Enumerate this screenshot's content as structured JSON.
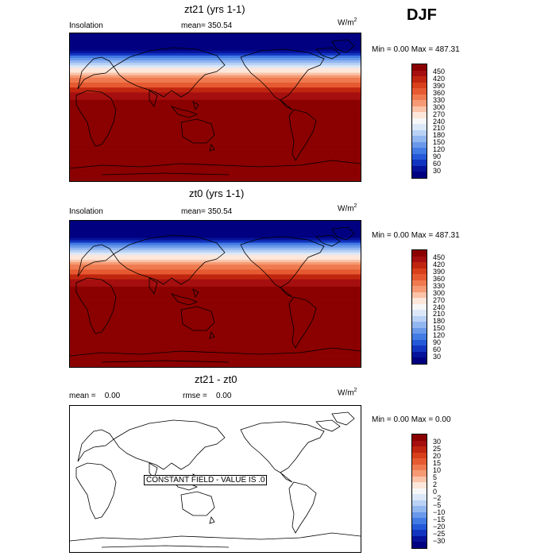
{
  "season": "DJF",
  "units": "W/m",
  "units_exp": "2",
  "panels": [
    {
      "title": "zt21 (yrs 1-1)",
      "left_label": "Insolation",
      "mid_label": "mean=",
      "mid_value": "350.54",
      "minmax": "Min =    0.00 Max = 487.31",
      "colorbar_ticks": [
        "450",
        "420",
        "390",
        "360",
        "330",
        "300",
        "270",
        "240",
        "210",
        "180",
        "150",
        "120",
        "90",
        "60",
        "30"
      ]
    },
    {
      "title": "zt0 (yrs 1-1)",
      "left_label": "Insolation",
      "mid_label": "mean=",
      "mid_value": "350.54",
      "minmax": "Min =    0.00 Max = 487.31",
      "colorbar_ticks": [
        "450",
        "420",
        "390",
        "360",
        "330",
        "300",
        "270",
        "240",
        "210",
        "180",
        "150",
        "120",
        "90",
        "60",
        "30"
      ]
    },
    {
      "title": "zt21 - zt0",
      "left_label": "mean =",
      "left_value": "0.00",
      "mid_label": "rmse =",
      "mid_value": "0.00",
      "minmax": "Min =    0.00 Max =    0.00",
      "annotation": "CONSTANT FIELD - VALUE IS .0",
      "colorbar_ticks": [
        "30",
        "25",
        "20",
        "15",
        "10",
        "5",
        "2",
        "0",
        "−2",
        "−5",
        "−10",
        "−15",
        "−20",
        "−25",
        "−30"
      ]
    }
  ],
  "colors": {
    "colorbar": [
      "#8b0000",
      "#a50f0f",
      "#c0260f",
      "#d7401a",
      "#e65a32",
      "#ef7a4f",
      "#f59a74",
      "#fbc3a8",
      "#fde6da",
      "#f7f7f7",
      "#dce8f8",
      "#b8d1f5",
      "#92b6f0",
      "#6a98ea",
      "#437be4",
      "#2459d8",
      "#1235c0",
      "#06129a",
      "#000080"
    ],
    "map_bands": [
      "#000080",
      "#06129a",
      "#1235c0",
      "#2459d8",
      "#437be4",
      "#6a98ea",
      "#92b6f0",
      "#b8d1f5",
      "#dce8f8",
      "#f7f7f7",
      "#fde6da",
      "#fbc3a8",
      "#f59a74",
      "#ef7a4f",
      "#e65a32",
      "#d7401a",
      "#c0260f",
      "#a50f0f",
      "#8b0000"
    ]
  },
  "chart_data": [
    {
      "type": "heatmap",
      "title": "zt21 (yrs 1-1)",
      "subtitle": "Insolation",
      "mean": 350.54,
      "units": "W/m2",
      "min": 0.0,
      "max": 487.31,
      "levels": [
        30,
        60,
        90,
        120,
        150,
        180,
        210,
        240,
        270,
        300,
        330,
        360,
        390,
        420,
        450
      ],
      "profile_lat": [
        90,
        80,
        70,
        60,
        50,
        40,
        30,
        20,
        10,
        0,
        -10,
        -20,
        -30,
        -40,
        -50,
        -60,
        -70,
        -80,
        -90
      ],
      "profile_value": [
        0,
        0,
        30,
        120,
        210,
        300,
        360,
        410,
        450,
        470,
        480,
        487,
        487,
        480,
        470,
        460,
        470,
        480,
        487
      ]
    },
    {
      "type": "heatmap",
      "title": "zt0 (yrs 1-1)",
      "subtitle": "Insolation",
      "mean": 350.54,
      "units": "W/m2",
      "min": 0.0,
      "max": 487.31,
      "levels": [
        30,
        60,
        90,
        120,
        150,
        180,
        210,
        240,
        270,
        300,
        330,
        360,
        390,
        420,
        450
      ],
      "profile_lat": [
        90,
        80,
        70,
        60,
        50,
        40,
        30,
        20,
        10,
        0,
        -10,
        -20,
        -30,
        -40,
        -50,
        -60,
        -70,
        -80,
        -90
      ],
      "profile_value": [
        0,
        0,
        30,
        120,
        210,
        300,
        360,
        410,
        450,
        470,
        480,
        487,
        487,
        480,
        470,
        460,
        470,
        480,
        487
      ]
    },
    {
      "type": "heatmap",
      "title": "zt21 - zt0",
      "mean": 0.0,
      "rmse": 0.0,
      "units": "W/m2",
      "min": 0.0,
      "max": 0.0,
      "levels": [
        -30,
        -25,
        -20,
        -15,
        -10,
        -5,
        -2,
        0,
        2,
        5,
        10,
        15,
        20,
        25,
        30
      ],
      "annotation": "CONSTANT FIELD - VALUE IS .0"
    }
  ]
}
